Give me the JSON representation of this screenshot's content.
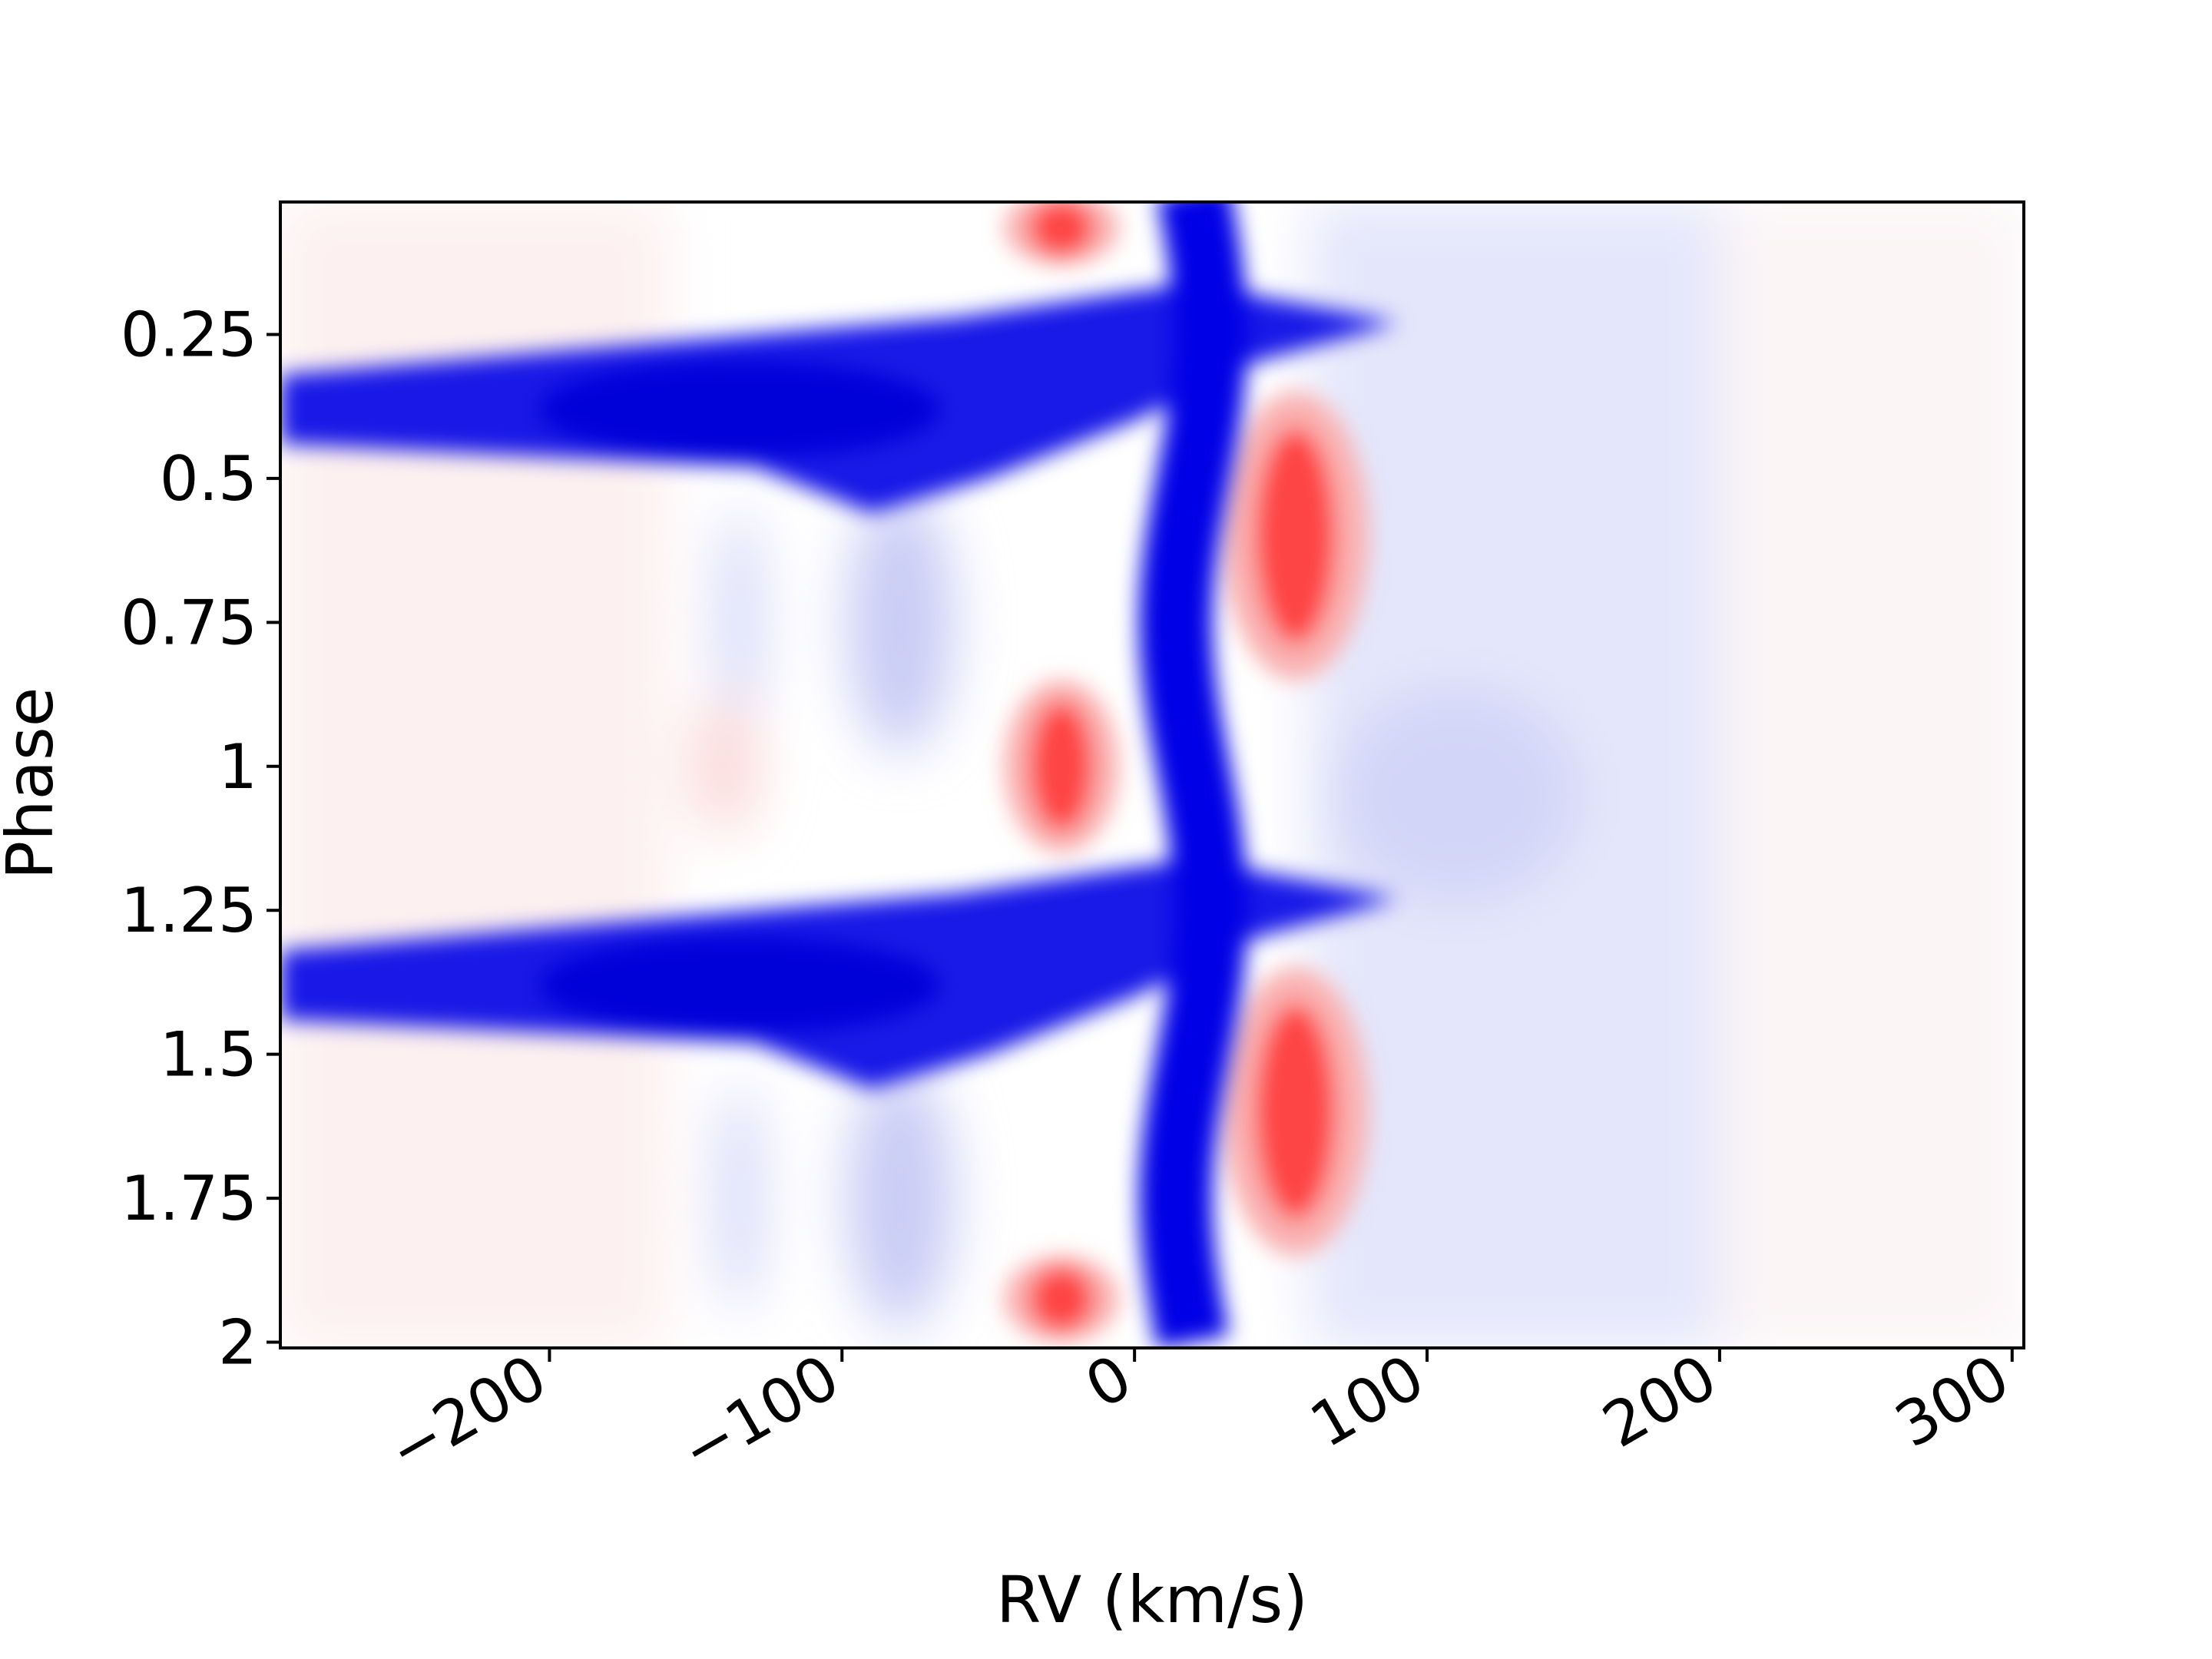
{
  "chart_data": {
    "type": "heatmap",
    "xlabel": "RV (km/s)",
    "ylabel": "Phase",
    "xlim": [
      -292,
      304
    ],
    "ylim": [
      0.02,
      2.01
    ],
    "y_inverted": true,
    "x_ticks": [
      -200,
      -100,
      0,
      100,
      200,
      300
    ],
    "x_tick_labels": [
      "−200",
      "−100",
      "0",
      "100",
      "200",
      "300"
    ],
    "y_ticks": [
      0.25,
      0.5,
      0.75,
      1,
      1.25,
      1.5,
      1.75,
      2
    ],
    "y_tick_labels": [
      "0.25",
      "0.5",
      "0.75",
      "1",
      "1.25",
      "1.5",
      "1.75",
      "2"
    ],
    "colormap": "bwr",
    "colors": {
      "negative": "#0000e6",
      "positive": "#ff2a2a",
      "zero": "#ffffff"
    },
    "features": [
      {
        "name": "central absorption",
        "rv_center": 20,
        "rv_width": 45,
        "phase_range": [
          0.0,
          2.0
        ],
        "sign": "negative"
      },
      {
        "name": "horizontal absorption band",
        "rv_range": [
          -292,
          40
        ],
        "phase_center": 0.38,
        "sign": "negative"
      },
      {
        "name": "horizontal absorption band",
        "rv_range": [
          -292,
          40
        ],
        "phase_center": 1.38,
        "sign": "negative"
      },
      {
        "name": "emission",
        "rv_center": 55,
        "phase_range": [
          0.35,
          0.85
        ],
        "sign": "positive"
      },
      {
        "name": "emission",
        "rv_center": 55,
        "phase_range": [
          1.35,
          1.85
        ],
        "sign": "positive"
      },
      {
        "name": "emission",
        "rv_center": -25,
        "phase_range": [
          0.85,
          1.15
        ],
        "sign": "positive"
      },
      {
        "name": "emission",
        "rv_center": -25,
        "phase_range": [
          1.85,
          2.0
        ],
        "sign": "positive"
      },
      {
        "name": "emission",
        "rv_center": -25,
        "phase_range": [
          0.0,
          0.13
        ],
        "sign": "positive"
      }
    ]
  }
}
